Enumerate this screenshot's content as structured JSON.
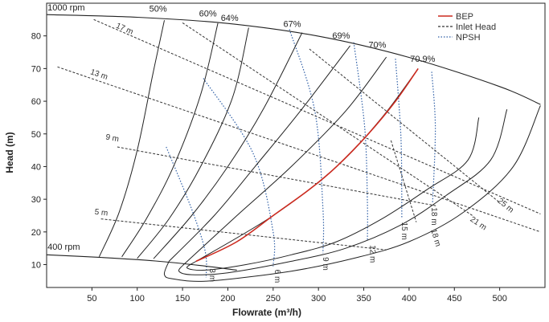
{
  "chart_data": {
    "type": "line",
    "title": "",
    "xlabel": "Flowrate (m³/h)",
    "ylabel": "Head (m)",
    "xlim": [
      0,
      550
    ],
    "ylim": [
      3,
      90
    ],
    "xticks": [
      "50",
      "100",
      "150",
      "200",
      "250",
      "300",
      "350",
      "400",
      "450",
      "500"
    ],
    "yticks": [
      "10",
      "20",
      "30",
      "40",
      "50",
      "60",
      "70",
      "80"
    ],
    "grid": false,
    "legend_position": "top-right",
    "legend": [
      {
        "label": "BEP",
        "style": "solid",
        "color": "#cc2a1f"
      },
      {
        "label": "Inlet Head",
        "style": "dashed",
        "color": "#333333"
      },
      {
        "label": "NPSH",
        "style": "dotted",
        "color": "#2f5fa6"
      }
    ],
    "speed_labels": {
      "top": "1000 rpm",
      "bottom": "400 rpm"
    },
    "head_top": [
      [
        0,
        86.5
      ],
      [
        100,
        85.7
      ],
      [
        200,
        83.8
      ],
      [
        300,
        79.9
      ],
      [
        400,
        73.4
      ],
      [
        500,
        64.5
      ],
      [
        545,
        59
      ]
    ],
    "head_bottom": [
      [
        0,
        13
      ],
      [
        60,
        12.2
      ],
      [
        120,
        11.1
      ],
      [
        170,
        9.7
      ],
      [
        210,
        8.3
      ]
    ],
    "efficiency": [
      {
        "label": "50%",
        "label_at": [
          123,
          87.4
        ],
        "points": [
          [
            58,
            12.4
          ],
          [
            80,
            26
          ],
          [
            100,
            45
          ],
          [
            117,
            68
          ],
          [
            130,
            84.8
          ]
        ]
      },
      {
        "label": "60%",
        "label_at": [
          178,
          85.9
        ],
        "points": [
          [
            83,
            12.4
          ],
          [
            110,
            24
          ],
          [
            140,
            40
          ],
          [
            170,
            62
          ],
          [
            189,
            83.9
          ]
        ]
      },
      {
        "label": "64%",
        "label_at": [
          202,
          84.6
        ],
        "points": [
          [
            100,
            11.9
          ],
          [
            135,
            24
          ],
          [
            170,
            40
          ],
          [
            205,
            61
          ],
          [
            223,
            82.5
          ]
        ]
      },
      {
        "label": "67%",
        "label_at": [
          271,
          82.7
        ],
        "points": [
          [
            118,
            11.8
          ],
          [
            160,
            25
          ],
          [
            200,
            40
          ],
          [
            240,
            58
          ],
          [
            282,
            81
          ]
        ]
      },
      {
        "label": "69%",
        "label_at": [
          325,
          79.2
        ],
        "points": [
          [
            135,
            11
          ],
          [
            185,
            25
          ],
          [
            230,
            40
          ],
          [
            280,
            57
          ],
          [
            335,
            77
          ]
        ]
      },
      {
        "label": "70%",
        "label_at": [
          365,
          76.3
        ],
        "points": [
          [
            152,
            10.2
          ],
          [
            210,
            25
          ],
          [
            270,
            40
          ],
          [
            330,
            57
          ],
          [
            375,
            73.5
          ]
        ]
      },
      {
        "label": "70.9%",
        "label_at": [
          415,
          72
        ],
        "points": [
          [
            165,
            11
          ],
          [
            250,
            25
          ],
          [
            320,
            40
          ],
          [
            370,
            55
          ],
          [
            410,
            70
          ]
        ]
      }
    ],
    "bep": [
      [
        165,
        11
      ],
      [
        210,
        17
      ],
      [
        250,
        25
      ],
      [
        290,
        33
      ],
      [
        320,
        40
      ],
      [
        355,
        50
      ],
      [
        385,
        60
      ],
      [
        410,
        70
      ]
    ],
    "inner_loops": [
      {
        "points": [
          [
            165,
            11
          ],
          [
            155,
            9
          ],
          [
            175,
            8.3
          ],
          [
            220,
            10
          ],
          [
            270,
            13
          ],
          [
            320,
            17
          ],
          [
            370,
            24
          ],
          [
            420,
            33
          ],
          [
            465,
            42
          ],
          [
            477,
            55
          ]
        ]
      },
      {
        "points": [
          [
            152,
            10.2
          ],
          [
            146,
            8
          ],
          [
            160,
            6.9
          ],
          [
            200,
            7.5
          ],
          [
            270,
            11
          ],
          [
            330,
            15
          ],
          [
            390,
            22
          ],
          [
            440,
            31
          ],
          [
            490,
            42
          ],
          [
            508,
            57.5
          ]
        ]
      },
      {
        "points": [
          [
            135,
            11
          ],
          [
            130,
            7
          ],
          [
            140,
            5.6
          ],
          [
            180,
            5
          ],
          [
            270,
            8
          ],
          [
            340,
            12
          ],
          [
            400,
            17
          ],
          [
            460,
            26
          ],
          [
            515,
            40
          ],
          [
            545,
            58.7
          ]
        ]
      }
    ],
    "inlet_head": [
      {
        "label": "17 m",
        "label_at": [
          85,
          81.5
        ],
        "points": [
          [
            52,
            85
          ],
          [
            545,
            25.5
          ]
        ]
      },
      {
        "label": "13 m",
        "label_at": [
          57,
          67.5
        ],
        "points": [
          [
            12,
            70.5
          ],
          [
            545,
            20
          ]
        ]
      },
      {
        "label": "9 m",
        "label_at": [
          72,
          48
        ],
        "points": [
          [
            78,
            46
          ],
          [
            430,
            28
          ]
        ]
      },
      {
        "label": "5 m",
        "label_at": [
          60,
          25.2
        ],
        "points": [
          [
            60,
            24
          ],
          [
            375,
            14.5
          ]
        ]
      },
      {
        "label": "25 m",
        "label_at": [
          505,
          27.5
        ],
        "points": [
          [
            290,
            76
          ],
          [
            500,
            29
          ]
        ]
      },
      {
        "label": "21 m",
        "label_at": [
          475,
          22
        ],
        "points": [
          [
            150,
            84
          ],
          [
            470,
            25
          ]
        ]
      },
      {
        "label": "18 m",
        "label_at": [
          427,
          18
        ],
        "points": [
          [
            380,
            48
          ],
          [
            408,
            23
          ]
        ]
      }
    ],
    "npsh": [
      {
        "label": "3 m",
        "label_at": [
          180,
          8.8
        ],
        "points": [
          [
            132,
            46
          ],
          [
            160,
            27
          ],
          [
            175,
            14
          ],
          [
            176,
            6
          ]
        ]
      },
      {
        "label": "6 m",
        "label_at": [
          252,
          8.5
        ],
        "points": [
          [
            173,
            67
          ],
          [
            228,
            44
          ],
          [
            250,
            20
          ],
          [
            250,
            9.5
          ]
        ]
      },
      {
        "label": "9 m",
        "label_at": [
          305,
          12.3
        ],
        "points": [
          [
            268,
            82
          ],
          [
            296,
            57
          ],
          [
            305,
            27
          ],
          [
            305,
            13.5
          ]
        ]
      },
      {
        "label": "12 m",
        "label_at": [
          357,
          16
        ],
        "points": [
          [
            339,
            78
          ],
          [
            351,
            52
          ],
          [
            354,
            29
          ],
          [
            354,
            17.5
          ]
        ]
      },
      {
        "label": "15 m",
        "label_at": [
          392,
          23
        ],
        "points": [
          [
            385,
            73
          ],
          [
            391,
            49
          ],
          [
            392,
            24.5
          ]
        ]
      },
      {
        "label": "18 m",
        "label_at": [
          425,
          27.5
        ],
        "points": [
          [
            425,
            69
          ],
          [
            429,
            52
          ],
          [
            426,
            29
          ]
        ]
      }
    ]
  }
}
